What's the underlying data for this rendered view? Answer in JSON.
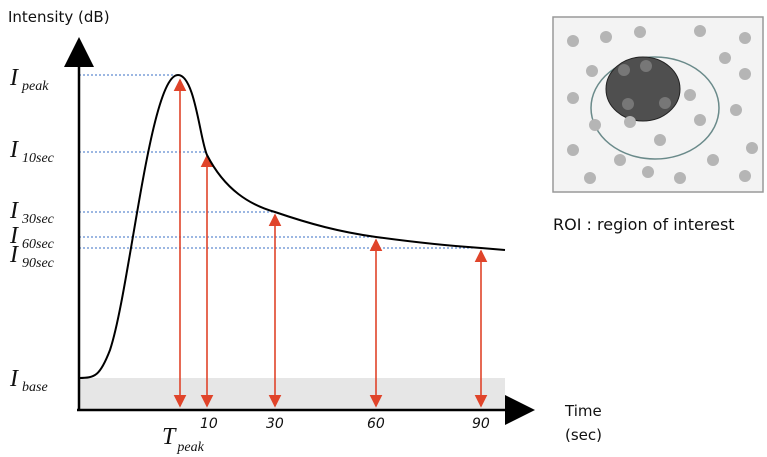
{
  "y_axis_label": "Intensity (dB)",
  "x_axis_label": [
    "Time",
    "(sec)"
  ],
  "intensity_labels": [
    {
      "symbol": "I",
      "subscript": "peak"
    },
    {
      "symbol": "I",
      "subscript": "10sec"
    },
    {
      "symbol": "I",
      "subscript": "30sec"
    },
    {
      "symbol": "I",
      "subscript": "60sec"
    },
    {
      "symbol": "I",
      "subscript": "90sec"
    },
    {
      "symbol": "I",
      "subscript": "base"
    }
  ],
  "time_ticks": [
    "10",
    "30",
    "60",
    "90"
  ],
  "peak_time": {
    "symbol": "T",
    "subscript": "peak"
  },
  "roi_caption": "ROI : region of interest"
}
